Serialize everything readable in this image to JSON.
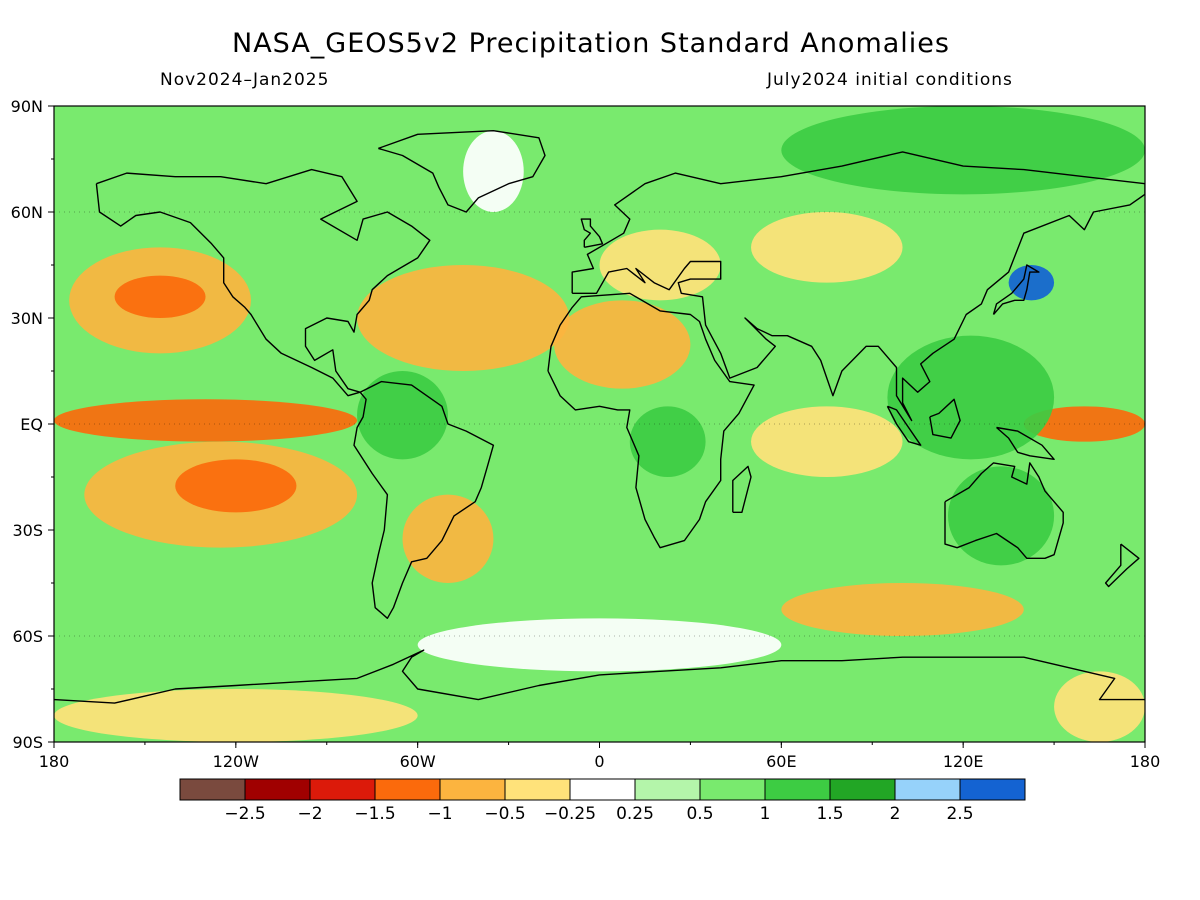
{
  "title": "NASA_GEOS5v2 Precipitation Standard Anomalies",
  "period": "Nov2024–Jan2025",
  "init": "July2024 initial conditions",
  "lat_labels": [
    "90N",
    "60N",
    "30N",
    "EQ",
    "30S",
    "60S",
    "90S"
  ],
  "lon_labels": [
    "180",
    "120W",
    "60W",
    "0",
    "60E",
    "120E",
    "180"
  ],
  "colorbar": {
    "colors": [
      "#7a4a3e",
      "#a00000",
      "#dc1a0a",
      "#fb6a0c",
      "#fcb43f",
      "#ffe27a",
      "#ffffff",
      "#b4f5aa",
      "#79ea6e",
      "#3dcc43",
      "#22a625",
      "#96d2fa",
      "#1463d2"
    ],
    "labels": [
      "−2.5",
      "−2",
      "−1.5",
      "−1",
      "−0.5",
      "−0.25",
      "0.25",
      "0.5",
      "1",
      "1.5",
      "2",
      "2.5"
    ]
  },
  "map": {
    "background_color": "#79ea6e",
    "regions": [
      {
        "name": "north-pacific-dry",
        "lon": [
          -175,
          -115
        ],
        "lat": [
          20,
          50
        ],
        "level": "dry"
      },
      {
        "name": "north-pacific-dry-core",
        "lon": [
          -160,
          -130
        ],
        "lat": [
          30,
          42
        ],
        "level": "very-dry"
      },
      {
        "name": "equatorial-pacific-dry",
        "lon": [
          -180,
          -80
        ],
        "lat": [
          -5,
          7
        ],
        "level": "very-dry"
      },
      {
        "name": "south-pacific-dry",
        "lon": [
          -170,
          -80
        ],
        "lat": [
          -35,
          -5
        ],
        "level": "dry"
      },
      {
        "name": "south-pacific-dry-core",
        "lon": [
          -140,
          -100
        ],
        "lat": [
          -25,
          -10
        ],
        "level": "very-dry"
      },
      {
        "name": "north-atlantic-dry",
        "lon": [
          -80,
          -10
        ],
        "lat": [
          15,
          45
        ],
        "level": "dry"
      },
      {
        "name": "sahara-dry",
        "lon": [
          -15,
          30
        ],
        "lat": [
          10,
          35
        ],
        "level": "dry"
      },
      {
        "name": "europe-dry",
        "lon": [
          0,
          40
        ],
        "lat": [
          35,
          55
        ],
        "level": "slight-dry"
      },
      {
        "name": "siberia-dry",
        "lon": [
          50,
          100
        ],
        "lat": [
          40,
          60
        ],
        "level": "slight-dry"
      },
      {
        "name": "indian-ocean-dry",
        "lon": [
          50,
          100
        ],
        "lat": [
          -15,
          5
        ],
        "level": "slight-dry"
      },
      {
        "name": "west-pacific-dry",
        "lon": [
          140,
          180
        ],
        "lat": [
          -5,
          5
        ],
        "level": "very-dry"
      },
      {
        "name": "south-america-dry",
        "lon": [
          -65,
          -35
        ],
        "lat": [
          -45,
          -20
        ],
        "level": "dry"
      },
      {
        "name": "south-ocean-dry",
        "lon": [
          60,
          140
        ],
        "lat": [
          -60,
          -45
        ],
        "level": "dry"
      },
      {
        "name": "antarctica-dry",
        "lon": [
          -180,
          -60
        ],
        "lat": [
          -90,
          -75
        ],
        "level": "slight-dry"
      },
      {
        "name": "antarctica-dry-east",
        "lon": [
          150,
          180
        ],
        "lat": [
          -90,
          -70
        ],
        "level": "slight-dry"
      },
      {
        "name": "maritime-wet",
        "lon": [
          95,
          150
        ],
        "lat": [
          -10,
          25
        ],
        "level": "wet"
      },
      {
        "name": "australia-wet",
        "lon": [
          115,
          150
        ],
        "lat": [
          -40,
          -12
        ],
        "level": "wet"
      },
      {
        "name": "arctic-wet",
        "lon": [
          60,
          180
        ],
        "lat": [
          65,
          90
        ],
        "level": "wet"
      },
      {
        "name": "congo-wet",
        "lon": [
          10,
          35
        ],
        "lat": [
          -15,
          5
        ],
        "level": "wet"
      },
      {
        "name": "amazon-wet",
        "lon": [
          -80,
          -50
        ],
        "lat": [
          -10,
          15
        ],
        "level": "wet"
      },
      {
        "name": "japan-very-wet",
        "lon": [
          135,
          150
        ],
        "lat": [
          35,
          45
        ],
        "level": "very-wet"
      },
      {
        "name": "greenland-neutral",
        "lon": [
          -45,
          -25
        ],
        "lat": [
          60,
          83
        ],
        "level": "neutral"
      },
      {
        "name": "south-ocean-neutral",
        "lon": [
          -60,
          60
        ],
        "lat": [
          -70,
          -55
        ],
        "level": "neutral"
      }
    ]
  }
}
